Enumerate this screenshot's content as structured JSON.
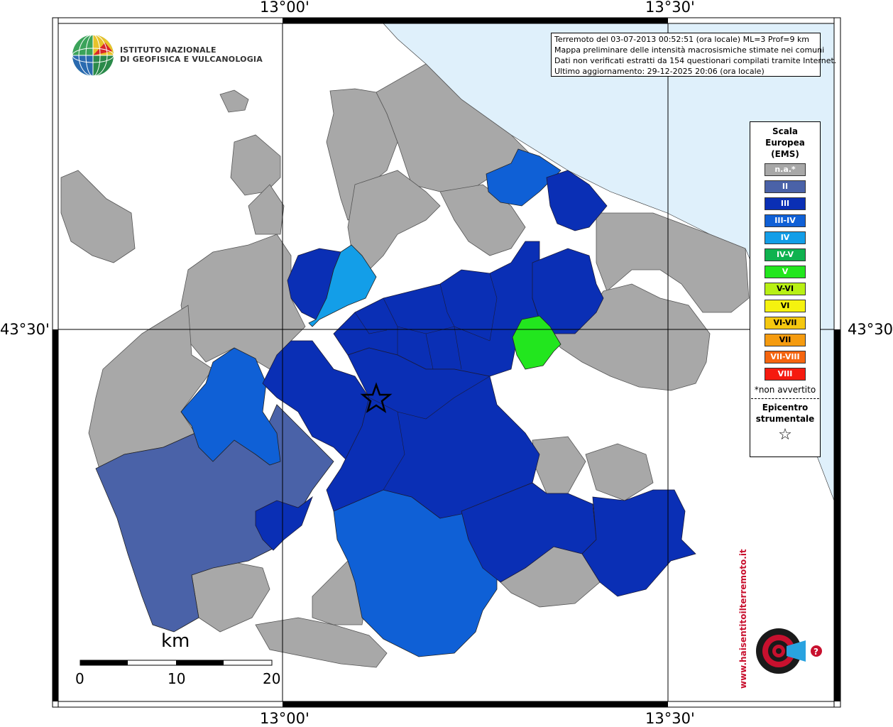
{
  "coordinates": {
    "top_left": "13°00'",
    "top_right": "13°30'",
    "bottom_left": "13°00'",
    "bottom_right": "13°30'",
    "left_lat": "43°30'",
    "right_lat": "43°30'"
  },
  "institute": {
    "line1": "ISTITUTO NAZIONALE",
    "line2": "DI GEOFISICA E VULCANOLOGIA"
  },
  "info": {
    "line1": "Terremoto del 03-07-2013 00:52:51 (ora locale) ML=3 Prof=9 km",
    "line2": "Mappa preliminare delle intensità macrosismiche stimate nei comuni",
    "line3": "Dati non verificati estratti da 154 questionari compilati tramite Internet.",
    "line4": "Ultimo aggiornamento: 29-12-2025 20:06 (ora locale)"
  },
  "legend": {
    "title1": "Scala",
    "title2": "Europea",
    "title3": "(EMS)",
    "items": [
      {
        "label": "n.a.*",
        "color": "#a8a8a8"
      },
      {
        "label": "II",
        "color": "#4a62a8"
      },
      {
        "label": "III",
        "color": "#0a2fb5"
      },
      {
        "label": "III-IV",
        "color": "#0f60d6"
      },
      {
        "label": "IV",
        "color": "#139ee8"
      },
      {
        "label": "IV-V",
        "color": "#0fb24f"
      },
      {
        "label": "V",
        "color": "#22e61e"
      },
      {
        "label": "V-VI",
        "color": "#b8f014"
      },
      {
        "label": "VI",
        "color": "#f5f20f"
      },
      {
        "label": "VI-VII",
        "color": "#f5c80f"
      },
      {
        "label": "VII",
        "color": "#f59b0f"
      },
      {
        "label": "VII-VIII",
        "color": "#f5650f"
      },
      {
        "label": "VIII",
        "color": "#f51a0f"
      }
    ],
    "note": "*non avvertito",
    "epicentre1": "Epicentro",
    "epicentre2": "strumentale",
    "epicentre_symbol": "☆"
  },
  "scale": {
    "unit": "km",
    "ticks": [
      "0",
      "10",
      "20"
    ]
  },
  "brand": {
    "text": "www.haisentitoilterremoto.it"
  },
  "colors": {
    "sea": "#dff0fb",
    "na": "#a8a8a8",
    "ems2": "#4a62a8",
    "ems3": "#0a2fb5",
    "ems34": "#0f60d6",
    "ems4": "#139ee8",
    "ems5": "#22e61e"
  }
}
